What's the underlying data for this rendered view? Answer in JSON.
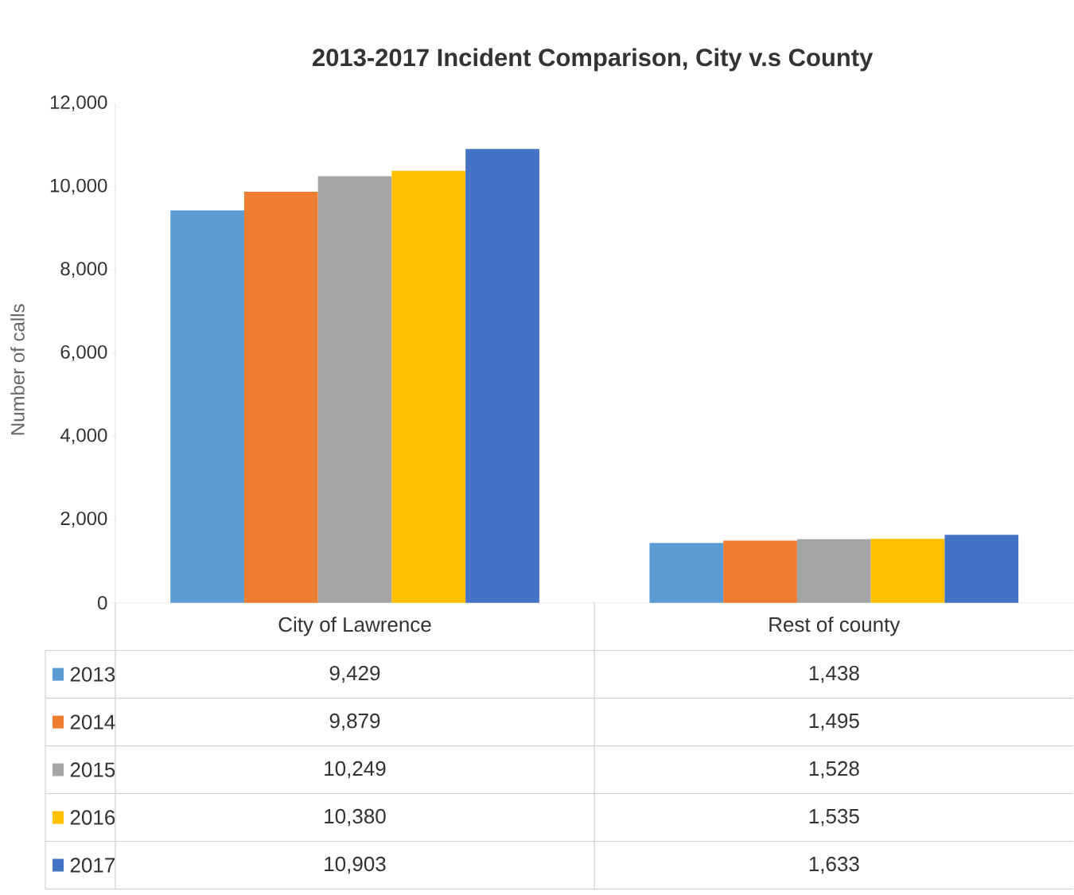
{
  "chart_data": {
    "type": "bar",
    "title": "2013-2017 Incident Comparison, City v.s County",
    "ylabel": "Number of calls",
    "categories": [
      "City of Lawrence",
      "Rest of county"
    ],
    "series": [
      {
        "name": "2013",
        "color": "#5b9bd5",
        "values": [
          9429,
          1438
        ],
        "value_labels": [
          "9,429",
          "1,438"
        ]
      },
      {
        "name": "2014",
        "color": "#ed7d31",
        "values": [
          9879,
          1495
        ],
        "value_labels": [
          "9,879",
          "1,495"
        ]
      },
      {
        "name": "2015",
        "color": "#a5a5a5",
        "values": [
          10249,
          1528
        ],
        "value_labels": [
          "10,249",
          "1,528"
        ]
      },
      {
        "name": "2016",
        "color": "#ffc000",
        "values": [
          10380,
          1535
        ],
        "value_labels": [
          "10,380",
          "1,535"
        ]
      },
      {
        "name": "2017",
        "color": "#4472c4",
        "values": [
          10903,
          1633
        ],
        "value_labels": [
          "10,903",
          "1,633"
        ]
      }
    ],
    "ylim": [
      0,
      12000
    ],
    "yticks": [
      0,
      {
        "value": 2000,
        "label": "2,000"
      },
      {
        "value": 4000,
        "label": "4,000"
      },
      {
        "value": 6000,
        "label": "6,000"
      },
      {
        "value": 8000,
        "label": "8,000"
      },
      {
        "value": 10000,
        "label": "10,000"
      },
      {
        "value": 12000,
        "label": "12,000"
      }
    ],
    "legend": "bottom"
  }
}
